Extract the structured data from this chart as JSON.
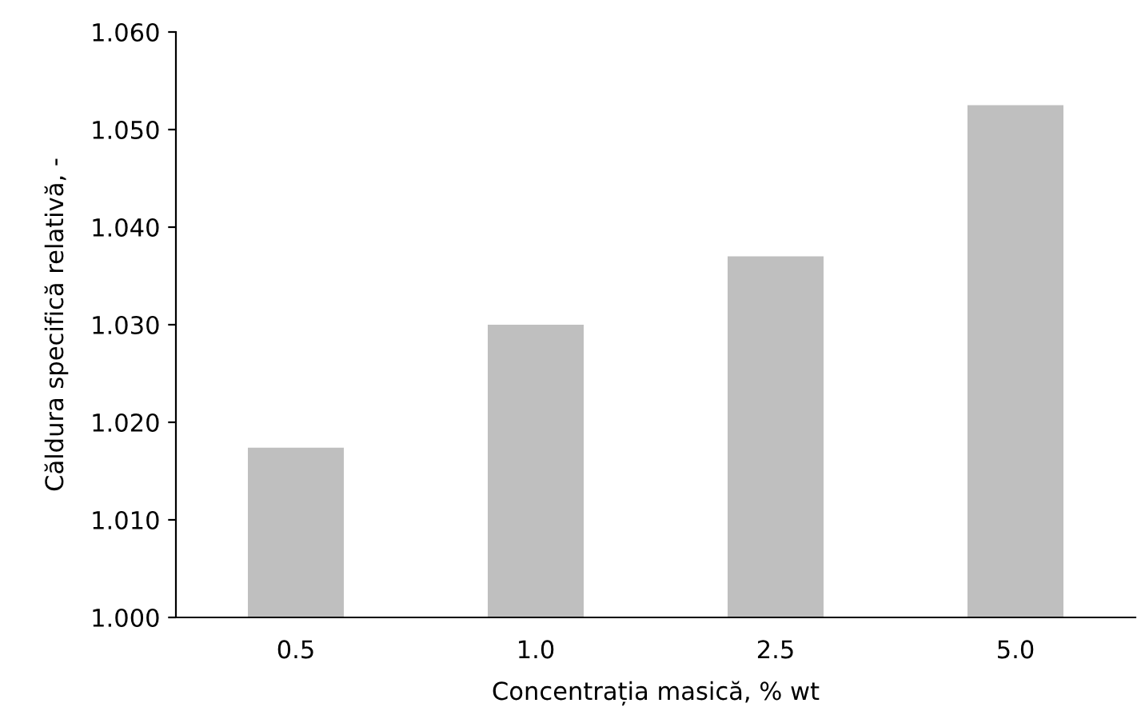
{
  "chart_data": {
    "type": "bar",
    "xlabel": "Concentrația masică, % wt",
    "ylabel": "Căldura specifică relativă, -",
    "categories": [
      "0.5",
      "1.0",
      "2.5",
      "5.0"
    ],
    "values": [
      1.0174,
      1.03,
      1.037,
      1.0525
    ],
    "color": "#bfbfbf",
    "ylim": [
      1.0,
      1.06
    ],
    "yticks": [
      {
        "value": 1.0,
        "label": "1.000"
      },
      {
        "value": 1.01,
        "label": "1.010"
      },
      {
        "value": 1.02,
        "label": "1.020"
      },
      {
        "value": 1.03,
        "label": "1.030"
      },
      {
        "value": 1.04,
        "label": "1.040"
      },
      {
        "value": 1.05,
        "label": "1.050"
      },
      {
        "value": 1.06,
        "label": "1.060"
      }
    ],
    "grid": false,
    "legend": false
  }
}
